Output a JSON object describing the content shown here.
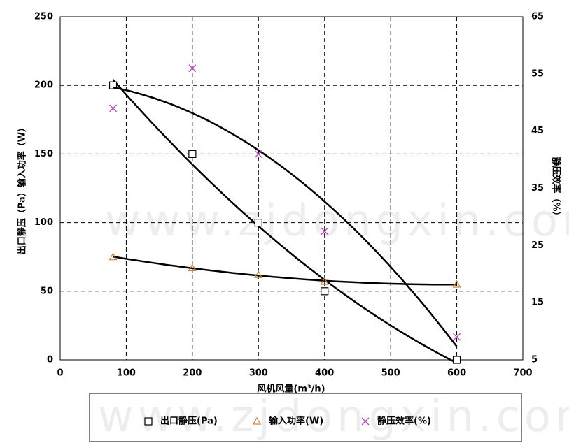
{
  "chart_data": {
    "type": "scatter",
    "xlabel": "风机风量(m³/h)",
    "ylabel": "出口静压（Pa）输入功率（W）",
    "y2label": "静压效率（%）",
    "watermark": "www.zjdongxin.com",
    "xlim": [
      0,
      700
    ],
    "xticks": [
      0,
      100,
      200,
      300,
      400,
      500,
      600,
      700
    ],
    "ylim": [
      0,
      250
    ],
    "yticks": [
      0,
      50,
      100,
      150,
      200,
      250
    ],
    "y2lim": [
      5,
      65
    ],
    "y2ticks": [
      5,
      15,
      25,
      35,
      45,
      55,
      65
    ],
    "grid": true,
    "legend": "bottom",
    "trendline": "polynomial",
    "series": [
      {
        "name": "出口静压(Pa)",
        "marker": "square",
        "color": "#000000",
        "x": [
          80,
          200,
          300,
          400,
          600
        ],
        "values": [
          200,
          150,
          100,
          50,
          0
        ]
      },
      {
        "name": "输入功率(W)",
        "marker": "triangle",
        "color": "#c8853a",
        "x": [
          80,
          200,
          300,
          400,
          600
        ],
        "values": [
          75,
          67,
          62,
          57,
          55
        ]
      },
      {
        "name": "静压效率(%)",
        "marker": "cross",
        "color": "#c040c0",
        "axis": "y2",
        "x": [
          80,
          200,
          300,
          400,
          600
        ],
        "values": [
          49,
          56,
          41,
          27.5,
          9
        ]
      }
    ]
  }
}
